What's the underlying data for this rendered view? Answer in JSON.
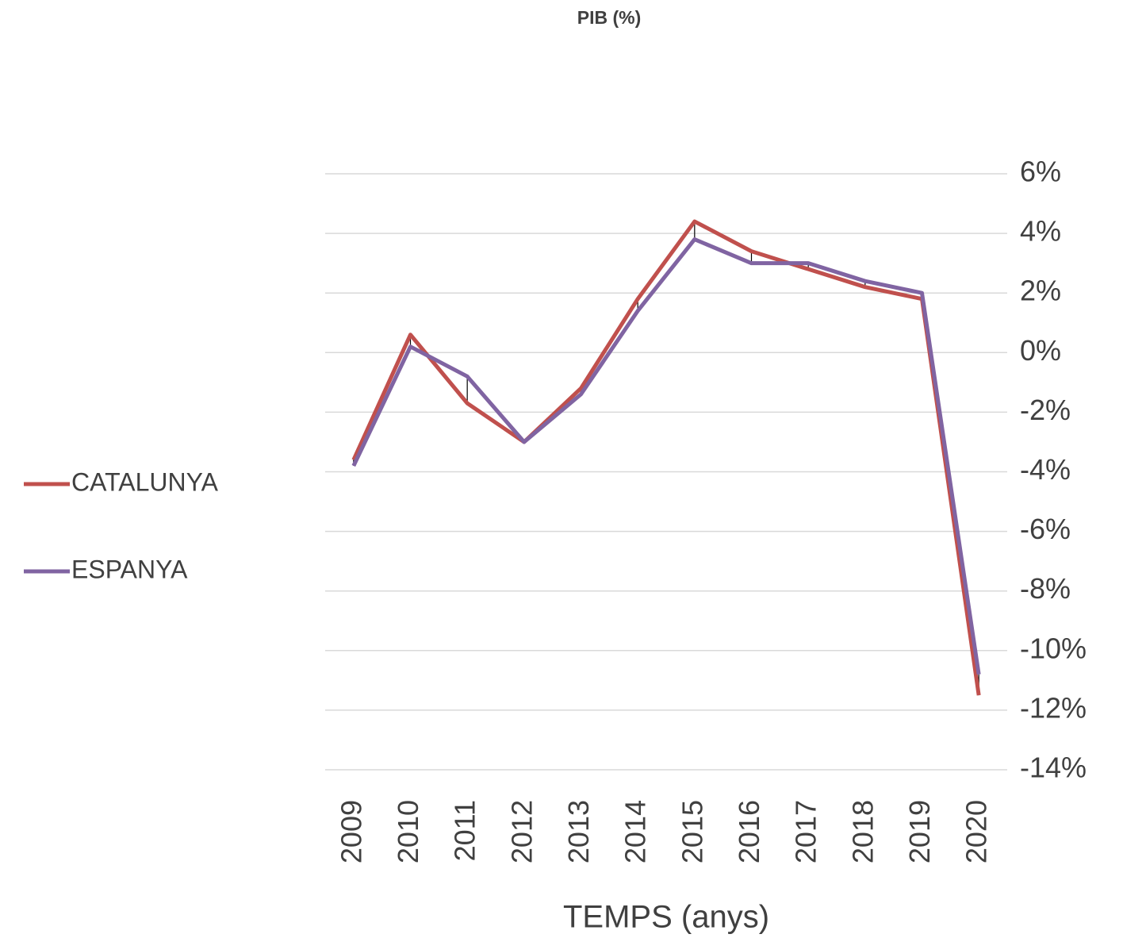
{
  "chart_data": {
    "type": "line",
    "title": "PIB (%)",
    "x_label": "TEMPS (anys)",
    "categories": [
      "2009",
      "2010",
      "2011",
      "2012",
      "2013",
      "2014",
      "2015",
      "2016",
      "2017",
      "2018",
      "2019",
      "2020"
    ],
    "series": [
      {
        "name": "CATALUNYA",
        "color": "#c0504d",
        "values": [
          -3.6,
          0.6,
          -1.7,
          -3.0,
          -1.2,
          1.8,
          4.4,
          3.4,
          2.8,
          2.2,
          1.8,
          -11.5
        ]
      },
      {
        "name": "ESPANYA",
        "color": "#8064a2",
        "values": [
          -3.8,
          0.2,
          -0.8,
          -3.0,
          -1.4,
          1.4,
          3.8,
          3.0,
          3.0,
          2.4,
          2.0,
          -10.8
        ]
      }
    ],
    "ylim": [
      -14,
      6
    ],
    "yticks": [
      {
        "value": -14,
        "label": "-14%"
      },
      {
        "value": -12,
        "label": "-12%"
      },
      {
        "value": -10,
        "label": "-10%"
      },
      {
        "value": -8,
        "label": "-8%"
      },
      {
        "value": -6,
        "label": "-6%"
      },
      {
        "value": -4,
        "label": "-4%"
      },
      {
        "value": -2,
        "label": "-2%"
      },
      {
        "value": 0,
        "label": "0%"
      },
      {
        "value": 2,
        "label": "2%"
      },
      {
        "value": 4,
        "label": "4%"
      },
      {
        "value": 6,
        "label": "6%"
      }
    ],
    "y_axis_side": "right",
    "grid": true,
    "legend": "left",
    "high_low_lines": true
  }
}
